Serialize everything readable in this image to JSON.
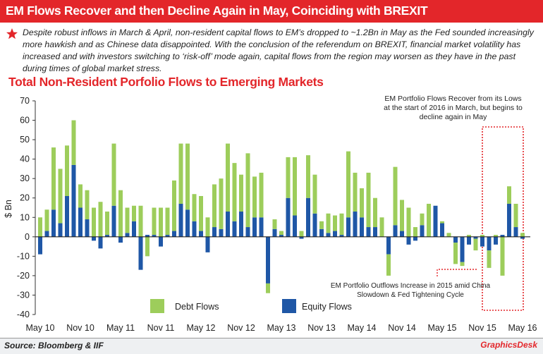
{
  "header": {
    "title": "EM Flows Recover and then Decline Again in May, Coinciding with BREXIT",
    "note": "Despite robust inflows in March & April, non-resident capital flows to EM’s dropped to ~1.2Bn in May as the Fed sounded increasingly more hawkish and as Chinese data disappointed. With the conclusion of the referendum on BREXIT, financial market volatility has increased and with investors switching to ‘risk-off’ mode again, capital flows from the region may worsen as they have in the past during times of global market stress."
  },
  "chart_data": {
    "type": "bar",
    "stacked": true,
    "title": "Total Non-Resident Porfolio Flows to Emerging Markets",
    "ylabel": "$ Bn",
    "categories": [
      "May 10",
      null,
      null,
      null,
      null,
      null,
      "Nov 10",
      null,
      null,
      null,
      null,
      null,
      "May 11",
      null,
      null,
      null,
      null,
      null,
      "Nov 11",
      null,
      null,
      null,
      null,
      null,
      "May 12",
      null,
      null,
      null,
      null,
      null,
      "Nov 12",
      null,
      null,
      null,
      null,
      null,
      "May 13",
      null,
      null,
      null,
      null,
      null,
      "Nov 13",
      null,
      null,
      null,
      null,
      null,
      "May 14",
      null,
      null,
      null,
      null,
      null,
      "Nov 14",
      null,
      null,
      null,
      null,
      null,
      "May 15",
      null,
      null,
      null,
      null,
      null,
      "Nov 15",
      null,
      null,
      null,
      null,
      null,
      "May 16"
    ],
    "series": [
      {
        "name": "Debt Flows",
        "color": "#9dcd5b",
        "values": [
          10,
          11,
          32,
          28,
          26,
          23,
          12,
          15,
          15,
          18,
          12,
          32,
          24,
          13,
          8,
          16,
          -10,
          14,
          15,
          14,
          26,
          31,
          34,
          14,
          18,
          10,
          22,
          26,
          35,
          30,
          19,
          38,
          21,
          23,
          -5,
          5,
          2,
          21,
          30,
          3,
          22,
          20,
          4,
          10,
          8,
          11,
          34,
          20,
          15,
          28,
          15,
          10,
          -11,
          30,
          16,
          15,
          5,
          6,
          17,
          0,
          1,
          2,
          -11,
          -2,
          1,
          -6,
          1,
          -9,
          1,
          -20,
          9,
          12,
          2
        ]
      },
      {
        "name": "Equity Flows",
        "color": "#1f57a6",
        "values": [
          -9,
          3,
          14,
          7,
          21,
          37,
          15,
          9,
          -2,
          -6,
          1,
          16,
          -3,
          2,
          8,
          -17,
          1,
          1,
          -5,
          1,
          3,
          17,
          14,
          8,
          3,
          -8,
          5,
          4,
          13,
          8,
          13,
          5,
          10,
          10,
          -24,
          4,
          1,
          20,
          11,
          -1,
          20,
          12,
          4,
          2,
          3,
          1,
          10,
          13,
          10,
          5,
          5,
          0,
          -9,
          6,
          3,
          -4,
          -2,
          6,
          0,
          16,
          7,
          0,
          -3,
          -13,
          -4,
          -1,
          -5,
          -7,
          -4,
          1,
          17,
          5,
          -1
        ]
      }
    ],
    "ylim": [
      -40,
      70
    ],
    "yticks": [
      -40,
      -30,
      -20,
      -10,
      0,
      10,
      20,
      30,
      40,
      50,
      60,
      70
    ],
    "annotations": [
      "EM Portfolio Flows Recover from its Lows at the start of 2016 in March, but begins to decline again in May",
      "EM Portfolio Outflows  Increase in 2015  amid China Slowdown & Fed Tightening Cycle"
    ]
  },
  "source": "Source: Bloomberg & IIF",
  "logo": "GraphicsDesk"
}
